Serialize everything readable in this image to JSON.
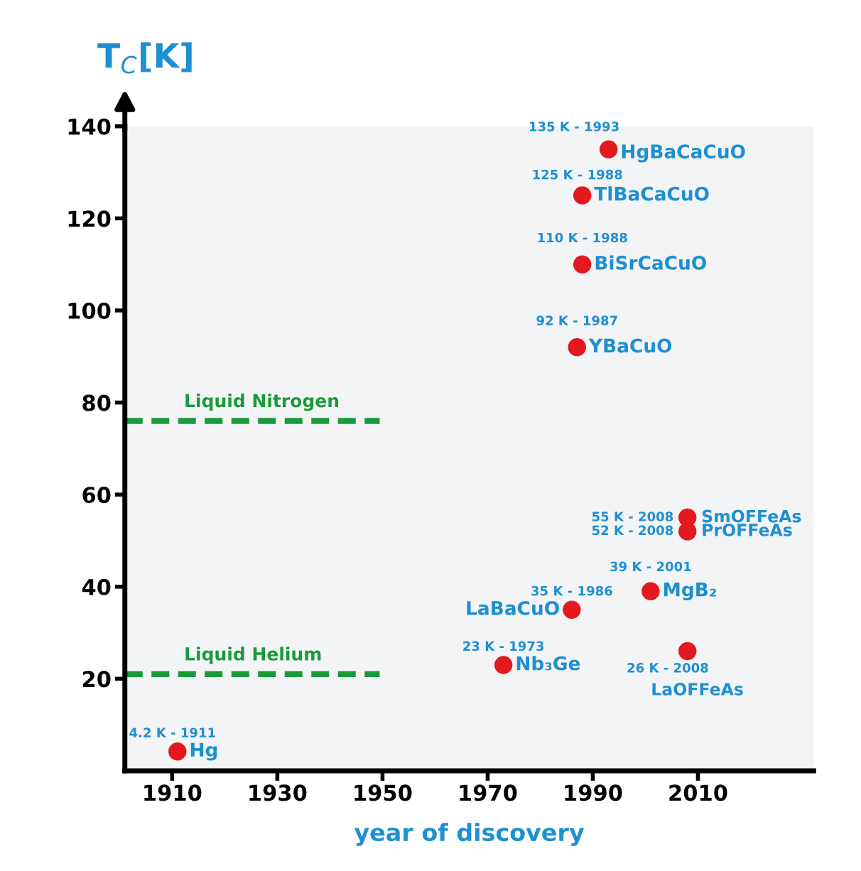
{
  "chart_data": {
    "type": "scatter",
    "xlabel": "year of discovery",
    "ylabel": "T$_{C}$[K]",
    "x": [
      1911,
      1973,
      1986,
      1987,
      1988,
      1988,
      1993,
      2001,
      2008,
      2008,
      2008
    ],
    "series": [
      {
        "color": "#e3191f",
        "values": [
          4.2,
          23,
          35,
          92,
          110,
          125,
          135,
          39,
          55,
          52,
          26
        ]
      }
    ],
    "marker": "circle",
    "grid": false,
    "xlim": [
      1901,
      2032
    ],
    "xticks": [
      1910,
      1930,
      1950,
      1970,
      1990,
      2010
    ],
    "ylim": [
      0,
      140
    ],
    "yticks": [
      20,
      40,
      60,
      80,
      100,
      120,
      140
    ],
    "ref_lines": [
      {
        "axis": "y",
        "value": 76,
        "label": "Liquid Nitrogen",
        "color": "#1a9a3a",
        "line_style": "dashed"
      },
      {
        "axis": "y",
        "value": 21,
        "label": "Liquid Helium",
        "color": "#1a9a3a",
        "line_style": "dashed"
      }
    ],
    "annotations": [
      {
        "text": "4.2 K - 1911",
        "x": 1911,
        "y": 4.2
      },
      {
        "text": "Hg",
        "x": 1911,
        "y": 4.2
      },
      {
        "text": "23 K - 1973",
        "x": 1973,
        "y": 23
      },
      {
        "text": "Nb₃Ge",
        "x": 1973,
        "y": 23
      },
      {
        "text": "35 K - 1986",
        "x": 1986,
        "y": 35
      },
      {
        "text": "LaBaCuO",
        "x": 1986,
        "y": 35
      },
      {
        "text": "92 K - 1987",
        "x": 1987,
        "y": 92
      },
      {
        "text": "YBaCuO",
        "x": 1987,
        "y": 92
      },
      {
        "text": "110 K - 1988",
        "x": 1988,
        "y": 110
      },
      {
        "text": "BiSrCaCuO",
        "x": 1988,
        "y": 110
      },
      {
        "text": "125 K - 1988",
        "x": 1988,
        "y": 125
      },
      {
        "text": "TlBaCaCuO",
        "x": 1988,
        "y": 125
      },
      {
        "text": "135 K - 1993",
        "x": 1993,
        "y": 135
      },
      {
        "text": "HgBaCaCuO",
        "x": 1993,
        "y": 135
      },
      {
        "text": "39 K - 2001",
        "x": 2001,
        "y": 39
      },
      {
        "text": "MgB₂",
        "x": 2001,
        "y": 39
      },
      {
        "text": "55 K - 2008",
        "x": 2008,
        "y": 55
      },
      {
        "text": "SmOFFeAs",
        "x": 2008,
        "y": 55
      },
      {
        "text": "52 K - 2008",
        "x": 2008,
        "y": 52
      },
      {
        "text": "PrOFFeAs",
        "x": 2008,
        "y": 52
      },
      {
        "text": "26 K - 2008",
        "x": 2008,
        "y": 26
      },
      {
        "text": "LaOFFeAs",
        "x": 2008,
        "y": 26
      }
    ]
  }
}
